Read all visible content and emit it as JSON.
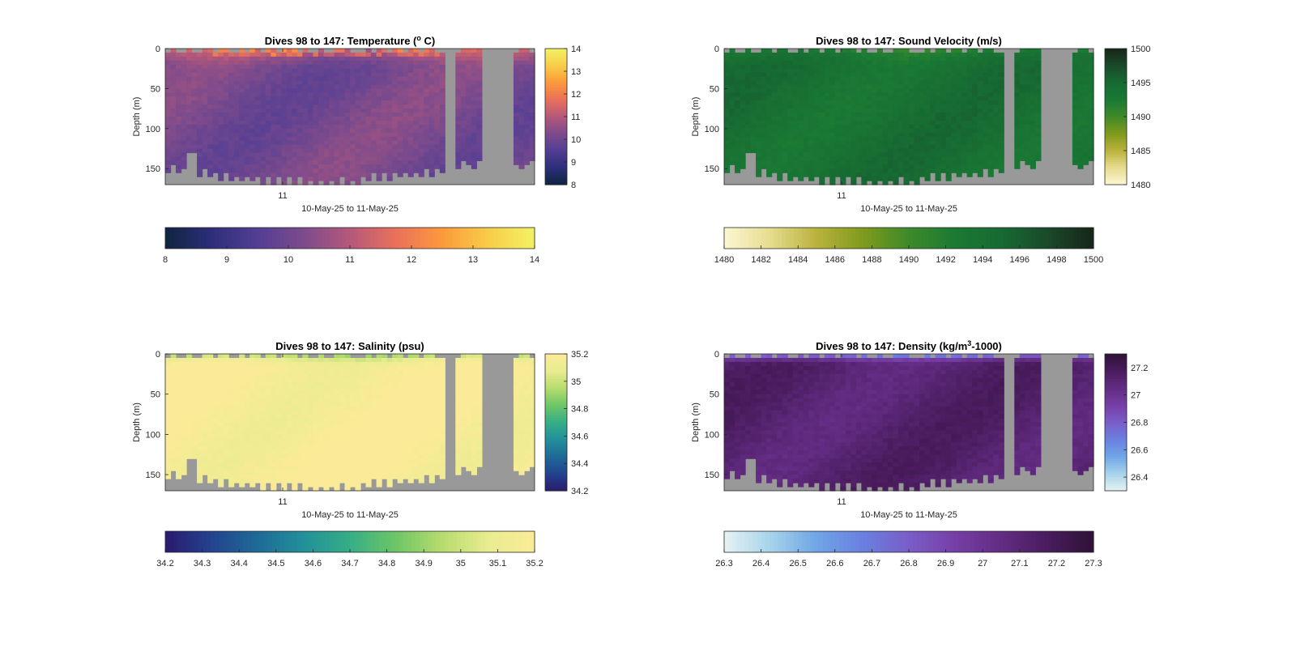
{
  "colors": {
    "no_data": "#999999",
    "axis": "#262626"
  },
  "chart_data": [
    {
      "type": "heatmap",
      "title": "Dives 98 to 147: Temperature (°C)",
      "title_prefix": "Dives 98 to 147: Temperature (",
      "title_sup": "o",
      "title_suffix": " C)",
      "xlabel": "10-May-25 to 11-May-25",
      "ylabel": "Depth (m)",
      "x_ticks": [
        "11"
      ],
      "y_ticks": [
        0,
        50,
        100,
        150
      ],
      "ylim": [
        0,
        170
      ],
      "dives": [
        98,
        147
      ],
      "clim": [
        8,
        14
      ],
      "colorbar_ticks": [
        "8",
        "9",
        "10",
        "11",
        "12",
        "13",
        "14"
      ],
      "horizontal_colorbar_ticks": [
        "8",
        "9",
        "10",
        "11",
        "12",
        "13",
        "14"
      ],
      "colormap": [
        "#0f2440",
        "#2d2f7a",
        "#533e94",
        "#7d4b8c",
        "#b5587a",
        "#e9715a",
        "#fb9a3c",
        "#f8cd48",
        "#f3f165"
      ],
      "surface_value": 11.3,
      "deep_value": 10.1,
      "mixed_layer_m": 30
    },
    {
      "type": "heatmap",
      "title": "Dives 98 to 147: Sound Velocity (m/s)",
      "xlabel": "10-May-25 to 11-May-25",
      "ylabel": "Depth (m)",
      "x_ticks": [
        "11"
      ],
      "y_ticks": [
        0,
        50,
        100,
        150
      ],
      "ylim": [
        0,
        170
      ],
      "dives": [
        98,
        147
      ],
      "clim": [
        1480,
        1500
      ],
      "colorbar_ticks": [
        "1480",
        "1485",
        "1490",
        "1495",
        "1500"
      ],
      "horizontal_colorbar_ticks": [
        "1480",
        "1482",
        "1484",
        "1486",
        "1488",
        "1490",
        "1492",
        "1494",
        "1496",
        "1498",
        "1500"
      ],
      "colormap": [
        "#fdf7d2",
        "#e6dc8e",
        "#b9b23c",
        "#7f9a1c",
        "#3d8a2a",
        "#1a7a34",
        "#176a33",
        "#1a4a2a",
        "#172618"
      ],
      "surface_value": 1491.5,
      "deep_value": 1494.0,
      "mixed_layer_m": 25
    },
    {
      "type": "heatmap",
      "title": "Dives 98 to 147: Salinity (psu)",
      "xlabel": "10-May-25 to 11-May-25",
      "ylabel": "Depth (m)",
      "x_ticks": [
        "11"
      ],
      "y_ticks": [
        0,
        50,
        100,
        150
      ],
      "ylim": [
        0,
        170
      ],
      "dives": [
        98,
        147
      ],
      "clim": [
        34.2,
        35.2
      ],
      "colorbar_ticks": [
        "34.2",
        "34.4",
        "34.6",
        "34.8",
        "35",
        "35.2"
      ],
      "horizontal_colorbar_ticks": [
        "34.2",
        "34.3",
        "34.4",
        "34.5",
        "34.6",
        "34.7",
        "34.8",
        "34.9",
        "35",
        "35.1",
        "35.2"
      ],
      "colormap": [
        "#2a1a6e",
        "#23438f",
        "#1f6a96",
        "#22909a",
        "#35ae86",
        "#6ec666",
        "#b7dc6e",
        "#e9ec90",
        "#fbeb98"
      ],
      "surface_value": 34.9,
      "deep_value": 35.18,
      "mixed_layer_m": 18
    },
    {
      "type": "heatmap",
      "title": "Dives 98 to 147: Density (kg/m³-1000)",
      "title_prefix": "Dives 98 to 147: Density (kg/m",
      "title_sup": "3",
      "title_suffix": "-1000)",
      "xlabel": "10-May-25 to 11-May-25",
      "ylabel": "Depth (m)",
      "x_ticks": [
        "11"
      ],
      "y_ticks": [
        0,
        50,
        100,
        150
      ],
      "ylim": [
        0,
        170
      ],
      "dives": [
        98,
        147
      ],
      "clim": [
        26.3,
        27.3
      ],
      "colorbar_ticks": [
        "26.4",
        "26.6",
        "26.8",
        "27",
        "27.2"
      ],
      "horizontal_colorbar_ticks": [
        "26.3",
        "26.4",
        "26.5",
        "26.6",
        "26.7",
        "26.8",
        "26.9",
        "27",
        "27.1",
        "27.2",
        "27.3"
      ],
      "colormap": [
        "#e6f2f4",
        "#a7d3ea",
        "#6fa6e6",
        "#6a7fe0",
        "#7a5dc8",
        "#763fa6",
        "#632c83",
        "#4a1c5e",
        "#2f1238"
      ],
      "surface_value": 26.6,
      "deep_value": 27.12,
      "mixed_layer_m": 15
    }
  ]
}
